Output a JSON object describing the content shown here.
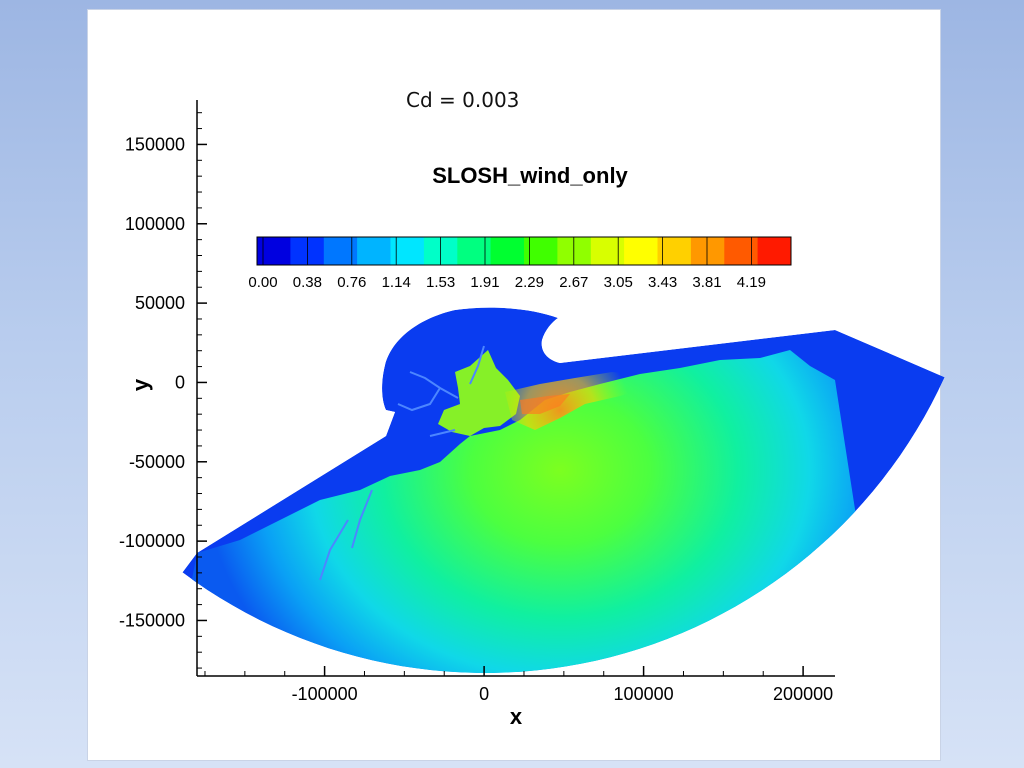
{
  "slide": {
    "annotation": "Cd = 0.003"
  },
  "chart_data": {
    "type": "heatmap",
    "title": "SLOSH_wind_only",
    "xlabel": "x",
    "ylabel": "y",
    "xlim": [
      -180000,
      220000
    ],
    "ylim": [
      -185000,
      178000
    ],
    "x_ticks": [
      -100000,
      0,
      100000,
      200000
    ],
    "y_ticks": [
      -150000,
      -100000,
      -50000,
      0,
      50000,
      100000,
      150000
    ],
    "x_tick_labels": [
      "-100000",
      "0",
      "100000",
      "200000"
    ],
    "y_tick_labels": [
      "-150000",
      "-100000",
      "-50000",
      "0",
      "50000",
      "100000",
      "150000"
    ],
    "colorbar": {
      "levels": [
        0.0,
        0.38,
        0.76,
        1.14,
        1.53,
        1.91,
        2.29,
        2.67,
        3.05,
        3.43,
        3.81,
        4.19
      ],
      "level_labels": [
        "0.00",
        "0.38",
        "0.76",
        "1.14",
        "1.53",
        "1.91",
        "2.29",
        "2.67",
        "3.05",
        "3.43",
        "3.81",
        "4.19"
      ],
      "colors": [
        "#0000e0",
        "#0033ff",
        "#0077ff",
        "#00b4ff",
        "#00e6ff",
        "#00ffc8",
        "#00ff80",
        "#00ff30",
        "#40ff00",
        "#90ff00",
        "#d8ff00",
        "#ffff00",
        "#ffd000",
        "#ff9800",
        "#ff5a00",
        "#ff1a00"
      ]
    },
    "grid": false,
    "legend": "colorbar-horizontal-top",
    "field_colors": {
      "land": "#0a3cf0",
      "offshore_low": "#1f6cf5",
      "shelf_mid": "#20e8d8",
      "nearshore_high": "#6cf23c",
      "peak": "#ff6a1a"
    }
  }
}
